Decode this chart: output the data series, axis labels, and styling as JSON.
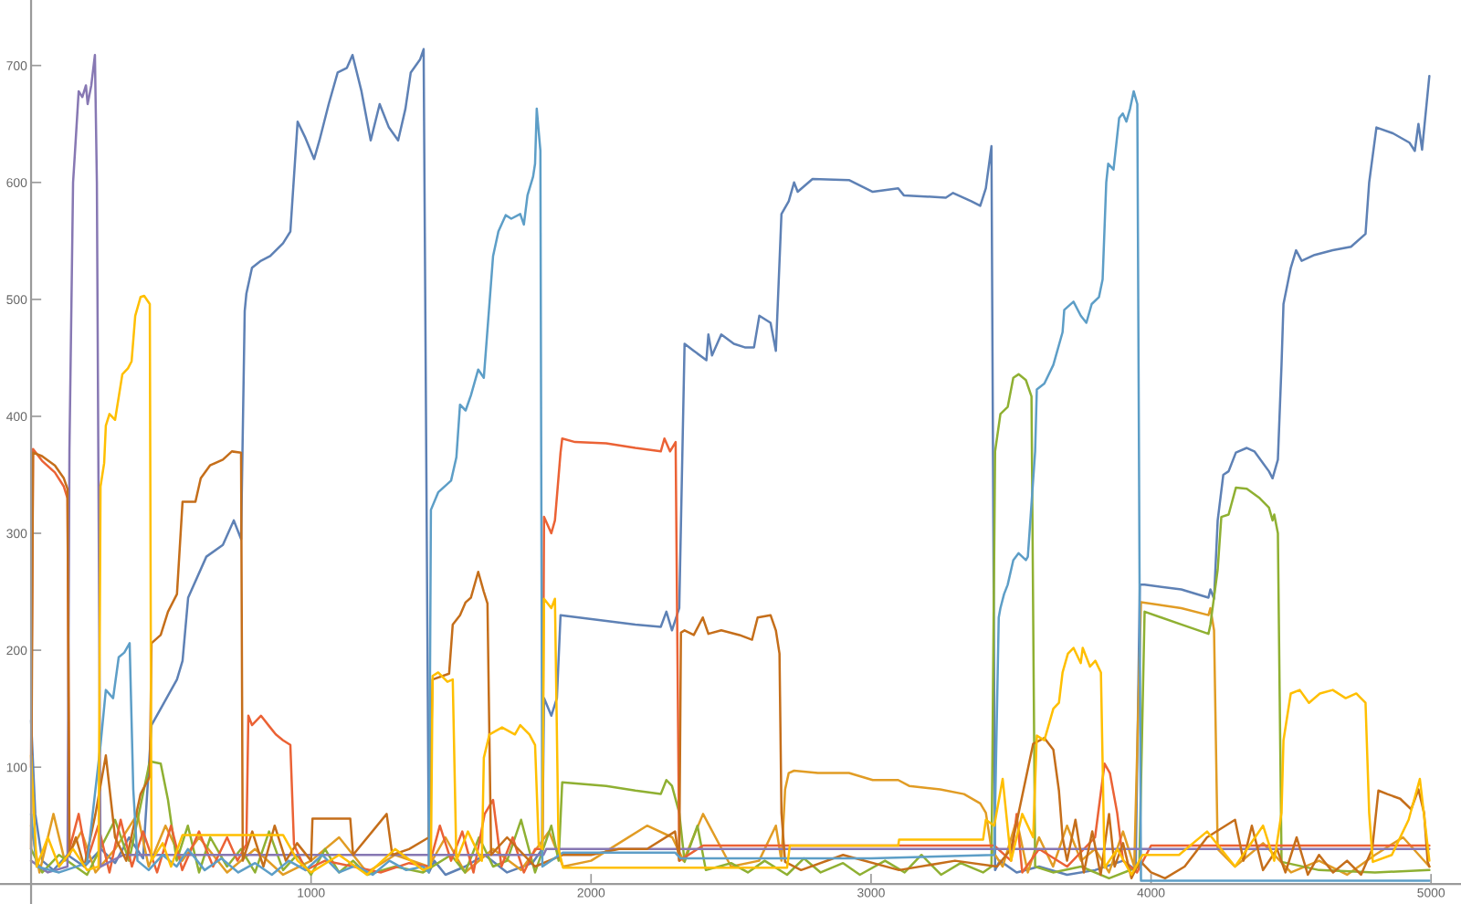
{
  "chart_data": {
    "type": "line",
    "xlim": [
      -111,
      5107
    ],
    "ylim": [
      -17,
      756
    ],
    "xticks": [
      1000,
      2000,
      3000,
      4000,
      5000
    ],
    "yticks": [
      100,
      200,
      300,
      400,
      500,
      600,
      700
    ],
    "series": [
      {
        "color": "#5e81b5",
        "x": [
          0,
          15,
          40,
          80,
          130,
          190,
          250,
          300,
          350,
          400,
          430,
          463,
          521,
          541,
          561,
          626,
          685,
          724,
          750,
          763,
          769,
          789,
          821,
          854,
          900,
          926,
          952,
          978,
          1011,
          1030,
          1063,
          1095,
          1128,
          1148,
          1180,
          1213,
          1245,
          1278,
          1311,
          1337,
          1356,
          1389,
          1402,
          1421,
          1440,
          1480,
          1550,
          1620,
          1700,
          1790,
          1826,
          1832,
          1858,
          1878,
          1891,
          2054,
          2158,
          2249,
          2269,
          2289,
          2315,
          2334,
          2367,
          2412,
          2419,
          2432,
          2465,
          2510,
          2549,
          2582,
          2601,
          2641,
          2660,
          2680,
          2706,
          2725,
          2738,
          2791,
          2921,
          3006,
          3097,
          3117,
          3267,
          3293,
          3358,
          3390,
          3410,
          3430,
          3443,
          3460,
          3520,
          3600,
          3700,
          3800,
          3900,
          3945,
          3960,
          3977,
          4108,
          4205,
          4212,
          4225,
          4238,
          4258,
          4277,
          4303,
          4342,
          4369,
          4421,
          4434,
          4453,
          4466,
          4473,
          4499,
          4518,
          4538,
          4584,
          4649,
          4714,
          4766,
          4779,
          4805,
          4864,
          4923,
          4942,
          4955,
          4968,
          4994
        ],
        "values": [
          140,
          60,
          20,
          12,
          25,
          15,
          30,
          18,
          40,
          22,
          136,
          150,
          175,
          191,
          245,
          280,
          290,
          311,
          295,
          490,
          505,
          527,
          533,
          537,
          548,
          558,
          652,
          639,
          620,
          636,
          667,
          694,
          698,
          709,
          678,
          636,
          667,
          647,
          636,
          663,
          694,
          705,
          714,
          10,
          20,
          8,
          15,
          25,
          10,
          18,
          30,
          159,
          144,
          159,
          230,
          225,
          222,
          220,
          233,
          217,
          236,
          462,
          456,
          448,
          470,
          452,
          470,
          462,
          459,
          459,
          486,
          480,
          456,
          573,
          584,
          600,
          592,
          603,
          602,
          592,
          595,
          589,
          587,
          591,
          584,
          580,
          595,
          631,
          12,
          20,
          10,
          15,
          8,
          12,
          20,
          12,
          256,
          256,
          252,
          245,
          252,
          244,
          311,
          350,
          353,
          369,
          373,
          370,
          353,
          347,
          363,
          444,
          496,
          527,
          542,
          533,
          538,
          542,
          545,
          556,
          600,
          647,
          642,
          634,
          627,
          650,
          628,
          691
        ]
      },
      {
        "color": "#e19c24",
        "x": [
          0,
          30,
          80,
          120,
          180,
          230,
          300,
          380,
          420,
          480,
          540,
          600,
          700,
          800,
          900,
          1000,
          1100,
          1200,
          1300,
          1420,
          1480,
          1550,
          1650,
          1750,
          1850,
          1900,
          2000,
          2100,
          2200,
          2290,
          2330,
          2400,
          2500,
          2600,
          2660,
          2680,
          2693,
          2706,
          2725,
          2810,
          2921,
          3006,
          3097,
          3136,
          3247,
          3332,
          3390,
          3410,
          3430,
          3470,
          3520,
          3560,
          3600,
          3650,
          3700,
          3750,
          3800,
          3850,
          3900,
          3940,
          3964,
          4108,
          4205,
          4212,
          4225,
          4238,
          4300,
          4400,
          4500,
          4600,
          4700,
          4800,
          4900,
          4994
        ],
        "values": [
          50,
          10,
          60,
          20,
          45,
          10,
          30,
          60,
          15,
          50,
          20,
          40,
          10,
          30,
          8,
          20,
          40,
          10,
          25,
          15,
          40,
          10,
          30,
          12,
          45,
          15,
          20,
          35,
          50,
          40,
          20,
          60,
          15,
          20,
          50,
          20,
          81,
          95,
          97,
          95,
          95,
          89,
          89,
          84,
          81,
          77,
          69,
          61,
          30,
          15,
          55,
          10,
          40,
          15,
          50,
          20,
          30,
          10,
          45,
          15,
          241,
          236,
          230,
          236,
          217,
          30,
          15,
          35,
          10,
          20,
          8,
          25,
          40,
          15
        ]
      },
      {
        "color": "#8fb032",
        "x": [
          0,
          40,
          100,
          200,
          300,
          350,
          424,
          463,
          489,
          520,
          560,
          600,
          640,
          700,
          750,
          800,
          850,
          900,
          950,
          1000,
          1050,
          1100,
          1150,
          1200,
          1300,
          1400,
          1500,
          1550,
          1600,
          1650,
          1700,
          1750,
          1800,
          1858,
          1884,
          1897,
          2054,
          2158,
          2249,
          2269,
          2289,
          2315,
          2334,
          2380,
          2410,
          2500,
          2560,
          2620,
          2700,
          2760,
          2820,
          2900,
          2960,
          3050,
          3120,
          3180,
          3250,
          3320,
          3400,
          3430,
          3443,
          3462,
          3488,
          3508,
          3527,
          3553,
          3573,
          3586,
          3650,
          3750,
          3850,
          3958,
          3977,
          4108,
          4205,
          4212,
          4238,
          4251,
          4277,
          4303,
          4342,
          4388,
          4421,
          4434,
          4440,
          4453,
          4466,
          4600,
          4800,
          4994
        ],
        "values": [
          30,
          10,
          25,
          8,
          55,
          20,
          105,
          103,
          72,
          20,
          50,
          10,
          40,
          15,
          30,
          10,
          45,
          12,
          25,
          8,
          30,
          10,
          20,
          8,
          15,
          10,
          25,
          10,
          40,
          15,
          20,
          55,
          10,
          50,
          20,
          87,
          84,
          80,
          77,
          89,
          84,
          61,
          19,
          50,
          12,
          18,
          10,
          20,
          8,
          22,
          10,
          18,
          8,
          20,
          10,
          25,
          8,
          18,
          10,
          15,
          370,
          402,
          408,
          433,
          436,
          431,
          417,
          15,
          10,
          15,
          5,
          15,
          233,
          222,
          214,
          222,
          269,
          314,
          316,
          339,
          338,
          330,
          322,
          311,
          316,
          300,
          19,
          12,
          10,
          12
        ]
      },
      {
        "color": "#eb6235",
        "x": [
          0,
          7,
          39,
          85,
          117,
          130,
          137,
          170,
          200,
          240,
          280,
          320,
          360,
          400,
          450,
          500,
          540,
          600,
          650,
          700,
          737,
          769,
          776,
          789,
          821,
          854,
          874,
          900,
          926,
          939,
          980,
          1050,
          1150,
          1250,
          1350,
          1421,
          1460,
          1500,
          1540,
          1580,
          1620,
          1650,
          1680,
          1720,
          1760,
          1800,
          1826,
          1832,
          1858,
          1871,
          1891,
          1897,
          1943,
          2054,
          2158,
          2249,
          2262,
          2282,
          2302,
          2315,
          2400,
          3440,
          3500,
          3520,
          3540,
          3600,
          3700,
          3800,
          3834,
          3853,
          3879,
          3900,
          3950,
          4000,
          4994
        ],
        "values": [
          100,
          372,
          362,
          352,
          340,
          330,
          30,
          60,
          20,
          50,
          10,
          55,
          15,
          45,
          10,
          50,
          12,
          45,
          15,
          40,
          20,
          34,
          144,
          136,
          144,
          134,
          128,
          123,
          119,
          34,
          12,
          20,
          15,
          10,
          18,
          15,
          50,
          20,
          45,
          10,
          60,
          72,
          15,
          40,
          10,
          30,
          30,
          314,
          300,
          311,
          369,
          381,
          378,
          377,
          373,
          370,
          381,
          370,
          378,
          20,
          33,
          33,
          20,
          60,
          10,
          30,
          15,
          40,
          103,
          95,
          61,
          20,
          10,
          33,
          33
        ]
      },
      {
        "color": "#8778b3",
        "x": [
          0,
          60,
          130,
          137,
          150,
          156,
          170,
          183,
          196,
          202,
          215,
          228,
          235,
          248,
          330,
          1830,
          1840,
          4994
        ],
        "values": [
          20,
          10,
          15,
          370,
          600,
          623,
          678,
          673,
          683,
          667,
          683,
          709,
          600,
          15,
          25,
          25,
          30,
          30
        ]
      },
      {
        "color": "#c56e1a",
        "x": [
          0,
          7,
          39,
          85,
          117,
          130,
          137,
          160,
          190,
          230,
          267,
          300,
          340,
          391,
          424,
          430,
          463,
          489,
          521,
          541,
          587,
          606,
          639,
          685,
          717,
          750,
          756,
          790,
          830,
          870,
          910,
          950,
          1000,
          1005,
          1140,
          1150,
          1270,
          1290,
          1350,
          1421,
          1434,
          1493,
          1506,
          1532,
          1552,
          1571,
          1597,
          1617,
          1630,
          1643,
          1700,
          1800,
          1900,
          2000,
          2100,
          2200,
          2300,
          2315,
          2321,
          2334,
          2367,
          2399,
          2419,
          2465,
          2530,
          2575,
          2595,
          2641,
          2660,
          2673,
          2680,
          2693,
          2750,
          2900,
          3100,
          3300,
          3450,
          3500,
          3579,
          3619,
          3651,
          3671,
          3684,
          3700,
          3730,
          3760,
          3790,
          3820,
          3850,
          3870,
          3900,
          3930,
          3960,
          4000,
          4050,
          4120,
          4200,
          4300,
          4330,
          4360,
          4400,
          4450,
          4480,
          4520,
          4560,
          4600,
          4650,
          4700,
          4750,
          4790,
          4812,
          4844,
          4890,
          4929,
          4955,
          4975,
          4988,
          4994
        ],
        "values": [
          30,
          369,
          366,
          358,
          347,
          338,
          25,
          40,
          15,
          60,
          110,
          40,
          20,
          77,
          92,
          206,
          213,
          233,
          248,
          327,
          327,
          347,
          358,
          363,
          370,
          369,
          20,
          45,
          15,
          50,
          20,
          35,
          20,
          56,
          56,
          25,
          60,
          25,
          30,
          40,
          175,
          180,
          222,
          230,
          241,
          245,
          267,
          250,
          240,
          25,
          40,
          15,
          25,
          25,
          30,
          30,
          45,
          20,
          215,
          217,
          213,
          228,
          214,
          217,
          213,
          209,
          228,
          230,
          217,
          197,
          61,
          19,
          12,
          25,
          12,
          20,
          15,
          30,
          120,
          125,
          115,
          80,
          40,
          20,
          55,
          10,
          45,
          8,
          60,
          15,
          35,
          5,
          20,
          10,
          5,
          15,
          40,
          55,
          20,
          50,
          12,
          30,
          10,
          40,
          8,
          25,
          10,
          20,
          8,
          30,
          80,
          77,
          73,
          64,
          81,
          61,
          19,
          15
        ]
      },
      {
        "color": "#5d9ec7",
        "x": [
          0,
          20,
          100,
          200,
          248,
          267,
          293,
          313,
          333,
          352,
          365,
          380,
          420,
          470,
          520,
          560,
          620,
          680,
          740,
          800,
          860,
          920,
          980,
          1040,
          1100,
          1160,
          1220,
          1280,
          1340,
          1400,
          1421,
          1428,
          1454,
          1500,
          1519,
          1532,
          1552,
          1571,
          1597,
          1617,
          1650,
          1669,
          1695,
          1715,
          1747,
          1760,
          1773,
          1793,
          1800,
          1806,
          1819,
          1826,
          1900,
          2300,
          2320,
          3000,
          3440,
          3456,
          3462,
          3475,
          3488,
          3508,
          3527,
          3553,
          3560,
          3586,
          3592,
          3619,
          3651,
          3684,
          3690,
          3723,
          3749,
          3769,
          3788,
          3814,
          3827,
          3840,
          3847,
          3866,
          3886,
          3899,
          3912,
          3925,
          3938,
          3951,
          3964,
          4994
        ],
        "values": [
          60,
          15,
          10,
          18,
          119,
          166,
          159,
          194,
          198,
          206,
          81,
          20,
          12,
          25,
          15,
          30,
          12,
          22,
          10,
          18,
          8,
          20,
          12,
          25,
          10,
          16,
          8,
          20,
          12,
          15,
          10,
          320,
          335,
          345,
          365,
          410,
          405,
          418,
          440,
          433,
          537,
          558,
          572,
          569,
          573,
          564,
          589,
          605,
          616,
          663,
          627,
          15,
          27,
          27,
          22,
          22,
          25,
          228,
          236,
          248,
          256,
          277,
          283,
          277,
          280,
          370,
          423,
          428,
          444,
          472,
          491,
          498,
          486,
          480,
          496,
          502,
          517,
          600,
          616,
          611,
          655,
          659,
          652,
          663,
          678,
          667,
          3,
          3
        ]
      },
      {
        "color": "#ffbf00",
        "x": [
          0,
          20,
          60,
          100,
          150,
          200,
          241,
          248,
          261,
          267,
          280,
          300,
          326,
          346,
          359,
          372,
          391,
          404,
          424,
          430,
          470,
          500,
          541,
          900,
          952,
          1000,
          1100,
          1200,
          1300,
          1400,
          1428,
          1434,
          1454,
          1487,
          1506,
          1519,
          1560,
          1610,
          1617,
          1637,
          1682,
          1728,
          1747,
          1780,
          1800,
          1813,
          1826,
          1832,
          1858,
          1871,
          1884,
          1900,
          2300,
          2330,
          2700,
          2710,
          3097,
          3100,
          3400,
          3410,
          3440,
          3470,
          3500,
          3540,
          3579,
          3592,
          3619,
          3651,
          3671,
          3684,
          3703,
          3723,
          3749,
          3756,
          3782,
          3801,
          3821,
          3834,
          3880,
          3930,
          3970,
          4100,
          4200,
          4300,
          4400,
          4440,
          4466,
          4473,
          4499,
          4531,
          4564,
          4603,
          4649,
          4695,
          4733,
          4766,
          4779,
          4792,
          4860,
          4920,
          4960,
          4994
        ],
        "values": [
          110,
          15,
          40,
          15,
          30,
          12,
          15,
          340,
          360,
          392,
          402,
          397,
          436,
          441,
          447,
          486,
          502,
          503,
          496,
          20,
          35,
          15,
          42,
          42,
          20,
          10,
          25,
          8,
          30,
          12,
          15,
          178,
          181,
          173,
          175,
          20,
          45,
          20,
          108,
          128,
          134,
          128,
          136,
          128,
          119,
          34,
          30,
          244,
          236,
          244,
          30,
          14,
          14,
          14,
          14,
          33,
          33,
          38,
          38,
          55,
          50,
          90,
          20,
          60,
          40,
          127,
          123,
          150,
          155,
          181,
          197,
          202,
          189,
          202,
          186,
          191,
          181,
          14,
          30,
          8,
          25,
          25,
          45,
          15,
          50,
          20,
          61,
          123,
          163,
          166,
          155,
          163,
          166,
          159,
          163,
          155,
          61,
          19,
          25,
          55,
          90,
          20
        ]
      }
    ]
  }
}
